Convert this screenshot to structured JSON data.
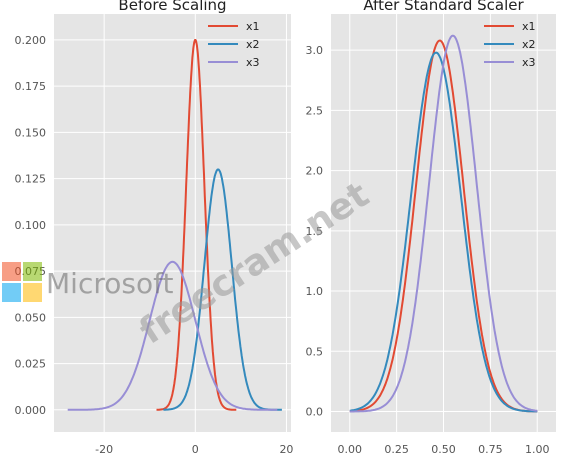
{
  "chart_data": [
    {
      "type": "line",
      "title": "Before Scaling",
      "xlabel": "",
      "ylabel": "",
      "xlim": [
        -31,
        21
      ],
      "ylim": [
        -0.012,
        0.214
      ],
      "xticks": [
        -20,
        0,
        20
      ],
      "yticks": [
        0.0,
        0.025,
        0.05,
        0.075,
        0.1,
        0.125,
        0.15,
        0.175,
        0.2
      ],
      "ytick_labels": [
        "0.000",
        "0.025",
        "0.050",
        "0.075",
        "0.100",
        "0.125",
        "0.150",
        "0.175",
        "0.200"
      ],
      "grid": true,
      "legend_position": "top-right",
      "series": [
        {
          "name": "x1",
          "color": "#e24a33",
          "mean": 0.0,
          "std": 2.0,
          "x_range": [
            -8.5,
            9.0
          ],
          "peak": 0.2
        },
        {
          "name": "x2",
          "color": "#348abd",
          "mean": 5.0,
          "std": 3.0,
          "x_range": [
            -7.0,
            19.0
          ],
          "peak": 0.13
        },
        {
          "name": "x3",
          "color": "#988ed5",
          "mean": -5.0,
          "std": 5.0,
          "x_range": [
            -28.0,
            18.0
          ],
          "peak": 0.08
        }
      ]
    },
    {
      "type": "line",
      "title": "After Standard Scaler",
      "xlabel": "",
      "ylabel": "",
      "xlim": [
        -0.1,
        1.1
      ],
      "ylim": [
        -0.17,
        3.3
      ],
      "xticks": [
        0.0,
        0.25,
        0.5,
        0.75,
        1.0
      ],
      "xtick_labels": [
        "0.00",
        "0.25",
        "0.50",
        "0.75",
        "1.00"
      ],
      "yticks": [
        0.0,
        0.5,
        1.0,
        1.5,
        2.0,
        2.5,
        3.0
      ],
      "ytick_labels": [
        "0.0",
        "0.5",
        "1.0",
        "1.5",
        "2.0",
        "2.5",
        "3.0"
      ],
      "grid": true,
      "legend_position": "top-right",
      "series": [
        {
          "name": "x1",
          "color": "#e24a33",
          "mean": 0.48,
          "std": 0.127,
          "x_range": [
            0.0,
            1.0
          ],
          "peak": 3.08
        },
        {
          "name": "x2",
          "color": "#348abd",
          "mean": 0.46,
          "std": 0.132,
          "x_range": [
            0.0,
            1.0
          ],
          "peak": 2.98
        },
        {
          "name": "x3",
          "color": "#988ed5",
          "mean": 0.55,
          "std": 0.127,
          "x_range": [
            0.0,
            1.0
          ],
          "peak": 3.12
        }
      ]
    }
  ],
  "watermark": {
    "brand": "Microsoft",
    "site": "freecram.net",
    "tiles": [
      "#f25022",
      "#7fba00",
      "#00a4ef",
      "#ffb900"
    ]
  }
}
